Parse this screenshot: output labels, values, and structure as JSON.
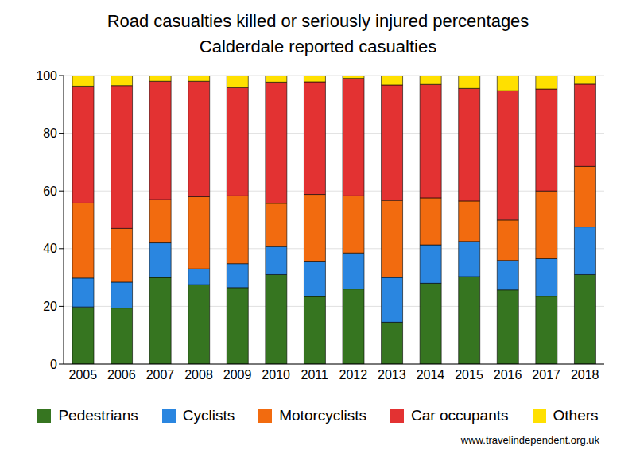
{
  "chart_data": {
    "type": "bar",
    "title": "Road casualties killed or seriously injured percentages",
    "subtitle": "Calderdale reported casualties",
    "source": "www.travelindependent.org.uk",
    "categories": [
      "2005",
      "2006",
      "2007",
      "2008",
      "2009",
      "2010",
      "2011",
      "2012",
      "2013",
      "2014",
      "2015",
      "2016",
      "2017",
      "2018"
    ],
    "series": [
      {
        "name": "Pedestrians",
        "color": "#367520",
        "values": [
          19.8,
          19.4,
          30,
          27.5,
          26.5,
          31,
          23.4,
          26,
          14.5,
          28,
          30.3,
          25.7,
          23.5,
          31
        ]
      },
      {
        "name": "Cyclists",
        "color": "#2a86e0",
        "values": [
          10,
          9,
          12,
          5.5,
          8.3,
          9.7,
          12,
          12.5,
          15.5,
          13.3,
          12.2,
          10.2,
          13,
          16.5
        ]
      },
      {
        "name": "Motorcyclists",
        "color": "#f26b0f",
        "values": [
          26,
          18.6,
          15,
          25,
          23.5,
          15,
          23.4,
          19.8,
          26.7,
          16.3,
          14,
          14,
          23.5,
          21
        ]
      },
      {
        "name": "Car occupants",
        "color": "#e33232",
        "values": [
          40.5,
          49.5,
          41,
          40,
          37.5,
          42,
          39,
          40.7,
          40,
          39.3,
          39,
          44.8,
          35.3,
          28.5
        ]
      },
      {
        "name": "Others",
        "color": "#ffe000",
        "values": [
          3.7,
          3.5,
          2,
          2,
          4.2,
          2.3,
          2.2,
          1,
          3.3,
          3.1,
          4.5,
          5.3,
          4.7,
          3
        ]
      }
    ],
    "ylim": [
      0,
      100
    ],
    "yticks": [
      0,
      20,
      40,
      60,
      80,
      100
    ],
    "grid": true,
    "stacked": true,
    "legend": "bottom"
  }
}
